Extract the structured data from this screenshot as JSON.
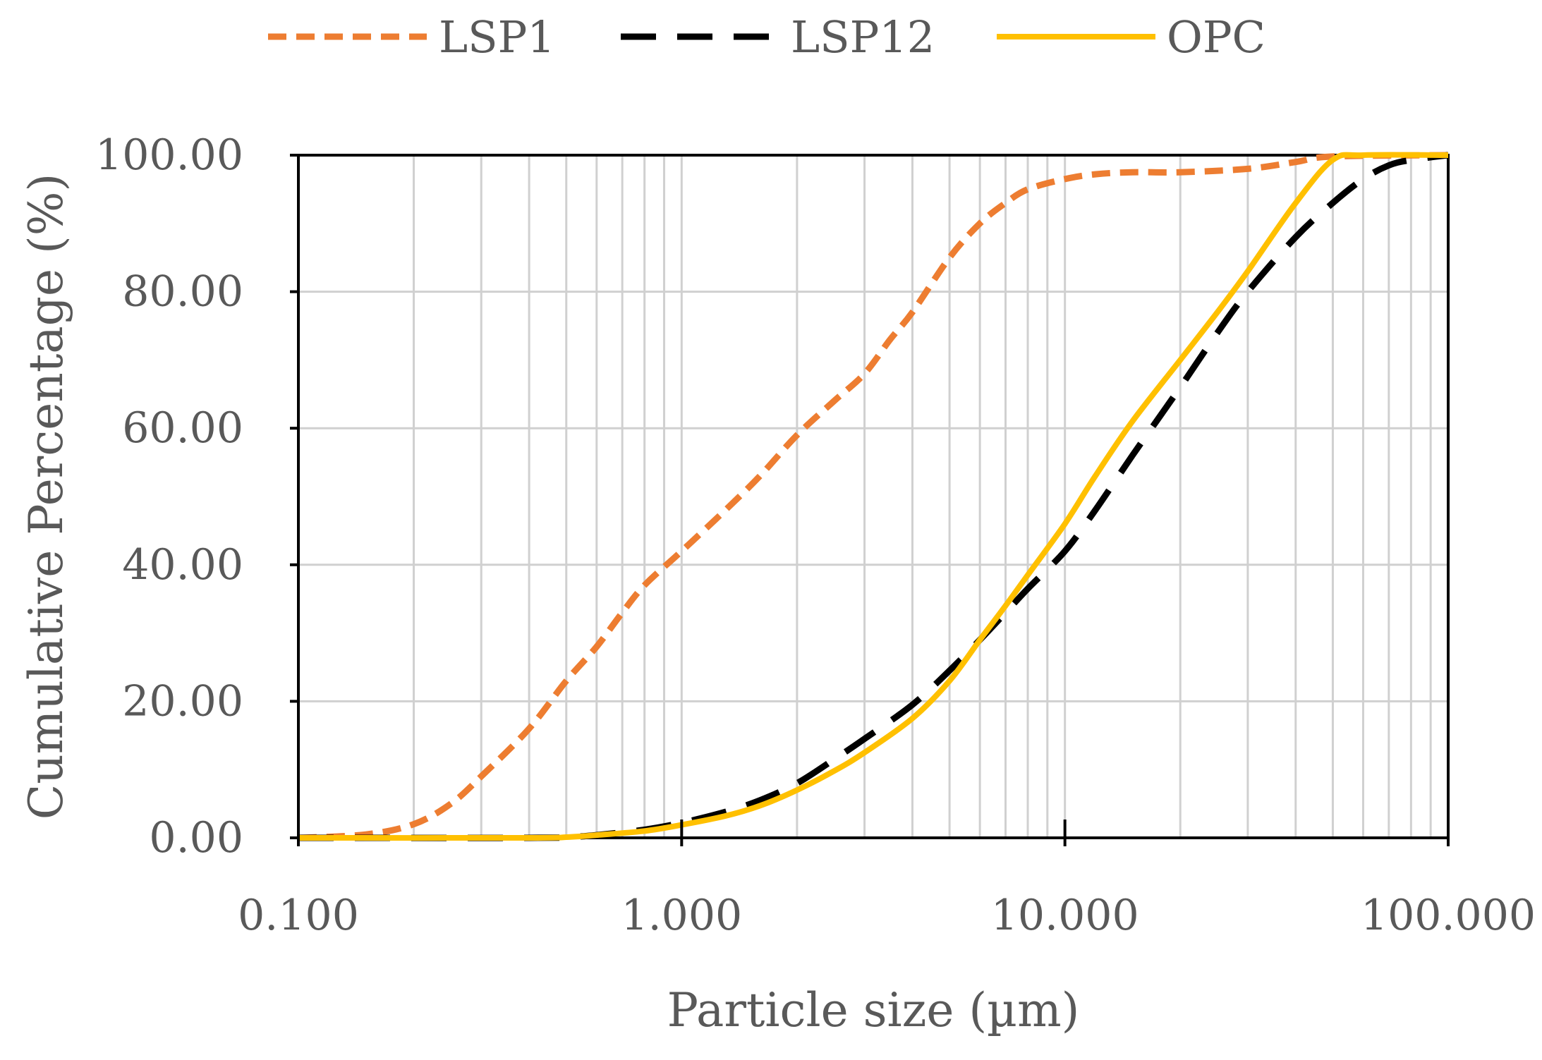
{
  "chart_data": {
    "type": "line",
    "x_scale": "log",
    "xlim": [
      0.1,
      100
    ],
    "ylim": [
      0,
      100
    ],
    "xlabel": "Particle size (µm)",
    "ylabel": "Cumulative Percentage (%)",
    "x_ticks": [
      {
        "value": 0.1,
        "label": "0.100"
      },
      {
        "value": 1,
        "label": "1.000"
      },
      {
        "value": 10,
        "label": "10.000"
      },
      {
        "value": 100,
        "label": "100.000"
      }
    ],
    "y_ticks": [
      {
        "value": 0,
        "label": "0.00"
      },
      {
        "value": 20,
        "label": "20.00"
      },
      {
        "value": 40,
        "label": "40.00"
      },
      {
        "value": 60,
        "label": "60.00"
      },
      {
        "value": 80,
        "label": "80.00"
      },
      {
        "value": 100,
        "label": "100.00"
      }
    ],
    "grid": true,
    "legend_position": "top",
    "series": [
      {
        "name": "LSP1",
        "color": "#ED7D31",
        "dash": "short-dash",
        "points": [
          [
            0.1,
            0
          ],
          [
            0.15,
            0.5
          ],
          [
            0.2,
            2
          ],
          [
            0.25,
            5
          ],
          [
            0.3,
            9
          ],
          [
            0.4,
            16
          ],
          [
            0.5,
            23
          ],
          [
            0.6,
            28
          ],
          [
            0.7,
            33
          ],
          [
            0.8,
            37
          ],
          [
            1.0,
            42
          ],
          [
            1.3,
            48
          ],
          [
            1.6,
            53
          ],
          [
            2.0,
            59
          ],
          [
            2.5,
            64
          ],
          [
            3.0,
            68
          ],
          [
            3.5,
            73
          ],
          [
            4.0,
            77
          ],
          [
            5.0,
            85
          ],
          [
            6.0,
            90
          ],
          [
            7.0,
            93
          ],
          [
            8.0,
            95
          ],
          [
            10.0,
            96.5
          ],
          [
            12.0,
            97.2
          ],
          [
            15.0,
            97.5
          ],
          [
            20.0,
            97.5
          ],
          [
            30.0,
            98
          ],
          [
            40.0,
            99
          ],
          [
            50.0,
            99.8
          ],
          [
            100.0,
            100
          ]
        ]
      },
      {
        "name": "LSP12",
        "color": "#000000",
        "dash": "long-dash",
        "points": [
          [
            0.1,
            0
          ],
          [
            0.4,
            0
          ],
          [
            0.5,
            0.1
          ],
          [
            0.6,
            0.4
          ],
          [
            0.8,
            1.2
          ],
          [
            1.0,
            2.2
          ],
          [
            1.3,
            3.8
          ],
          [
            1.6,
            5.5
          ],
          [
            2.0,
            8
          ],
          [
            2.5,
            11.5
          ],
          [
            3.0,
            14.5
          ],
          [
            4.0,
            19.5
          ],
          [
            5.0,
            24.5
          ],
          [
            6.0,
            29
          ],
          [
            7.0,
            33
          ],
          [
            8.0,
            36.5
          ],
          [
            10.0,
            42
          ],
          [
            12.0,
            48
          ],
          [
            15.0,
            56
          ],
          [
            20.0,
            66
          ],
          [
            25.0,
            74
          ],
          [
            30.0,
            80
          ],
          [
            40.0,
            88
          ],
          [
            50.0,
            93
          ],
          [
            60.0,
            96.5
          ],
          [
            70.0,
            98.5
          ],
          [
            80.0,
            99.3
          ],
          [
            100.0,
            100
          ]
        ]
      },
      {
        "name": "OPC",
        "color": "#FFC000",
        "dash": "solid",
        "points": [
          [
            0.1,
            0
          ],
          [
            0.4,
            0
          ],
          [
            0.5,
            0.1
          ],
          [
            0.6,
            0.4
          ],
          [
            0.8,
            1
          ],
          [
            1.0,
            1.9
          ],
          [
            1.3,
            3.2
          ],
          [
            1.6,
            4.7
          ],
          [
            2.0,
            7
          ],
          [
            2.5,
            9.8
          ],
          [
            3.0,
            12.5
          ],
          [
            4.0,
            17.5
          ],
          [
            5.0,
            23
          ],
          [
            6.0,
            29
          ],
          [
            7.0,
            34
          ],
          [
            8.0,
            38.5
          ],
          [
            10.0,
            46
          ],
          [
            12.0,
            53
          ],
          [
            15.0,
            61
          ],
          [
            20.0,
            70
          ],
          [
            25.0,
            77
          ],
          [
            30.0,
            83
          ],
          [
            40.0,
            93
          ],
          [
            50.0,
            99.3
          ],
          [
            60.0,
            100
          ],
          [
            100.0,
            100
          ]
        ]
      }
    ]
  }
}
